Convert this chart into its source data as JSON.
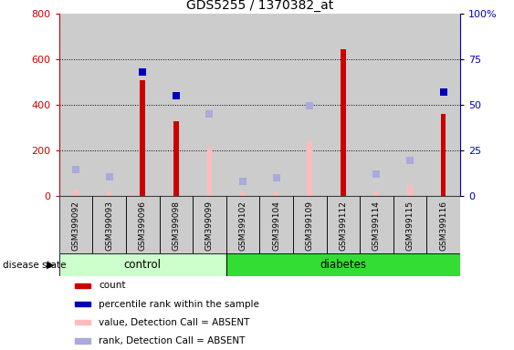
{
  "title": "GDS5255 / 1370382_at",
  "samples": [
    "GSM399092",
    "GSM399093",
    "GSM399096",
    "GSM399098",
    "GSM399099",
    "GSM399102",
    "GSM399104",
    "GSM399109",
    "GSM399112",
    "GSM399114",
    "GSM399115",
    "GSM399116"
  ],
  "count": [
    0,
    0,
    510,
    330,
    0,
    0,
    0,
    0,
    645,
    0,
    0,
    360
  ],
  "percentile_rank_pct": [
    null,
    null,
    68,
    55,
    null,
    null,
    null,
    null,
    null,
    null,
    null,
    57
  ],
  "value_absent": [
    30,
    20,
    0,
    0,
    215,
    15,
    15,
    240,
    20,
    20,
    50,
    0
  ],
  "rank_absent_left": [
    115,
    85,
    0,
    0,
    360,
    65,
    80,
    395,
    0,
    95,
    155,
    0
  ],
  "ylim_left": [
    0,
    800
  ],
  "ylim_right": [
    0,
    100
  ],
  "yticks_left": [
    0,
    200,
    400,
    600,
    800
  ],
  "yticks_right": [
    0,
    25,
    50,
    75,
    100
  ],
  "ytick_labels_right": [
    "0",
    "25",
    "50",
    "75",
    "100%"
  ],
  "control_count": 5,
  "diabetes_count": 7,
  "color_count": "#cc0000",
  "color_percentile": "#0000bb",
  "color_value_absent": "#ffbbbb",
  "color_rank_absent": "#aaaadd",
  "color_control_bg": "#ccffcc",
  "color_diabetes_bg": "#33dd33",
  "color_sample_bg": "#cccccc",
  "legend_items": [
    "count",
    "percentile rank within the sample",
    "value, Detection Call = ABSENT",
    "rank, Detection Call = ABSENT"
  ]
}
